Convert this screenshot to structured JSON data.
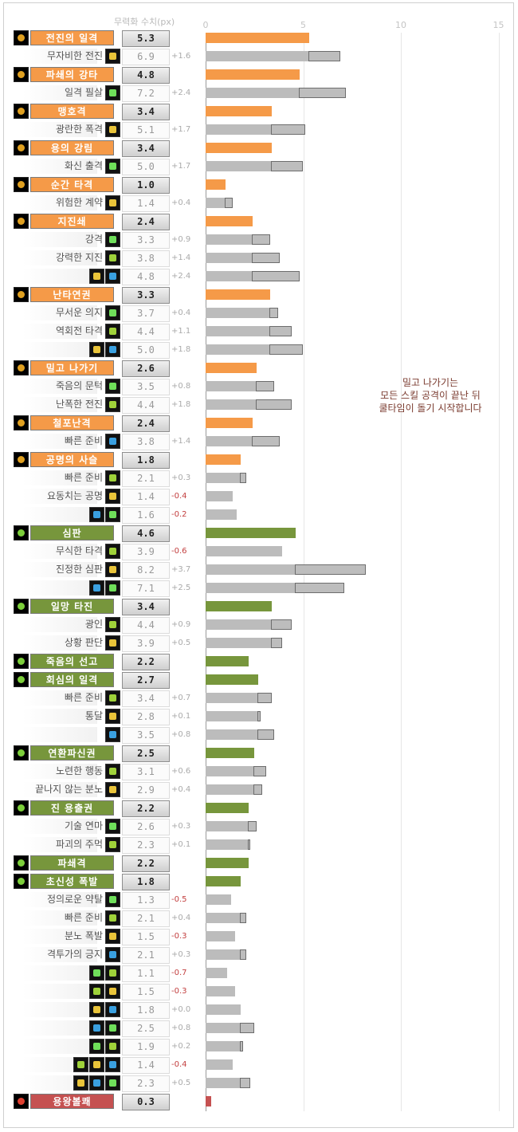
{
  "chart_data": {
    "type": "bar",
    "value_header": "무력화 수치(px)",
    "xlim": [
      0,
      15
    ],
    "ticks": [
      0,
      5,
      10,
      15
    ],
    "grid": true,
    "colors": {
      "orange": "#f59a48",
      "green": "#77963c",
      "red": "#c55151",
      "gray": "#bcbcbc"
    },
    "note": [
      "밀고 나가기는",
      "모든 스킬 공격이 끝난 뒤",
      "쿨타임이 돌기 시작합니다"
    ],
    "rows": [
      {
        "kind": "main",
        "label": "전진의 일격",
        "value": 5.3,
        "color": "orange"
      },
      {
        "kind": "sub",
        "label": "무자비한 전진",
        "icons": 1,
        "value": 6.9,
        "base": 5.3,
        "delta": "+1.6"
      },
      {
        "kind": "main",
        "label": "파쇄의 강타",
        "value": 4.8,
        "color": "orange"
      },
      {
        "kind": "sub",
        "label": "일격 필살",
        "icons": 1,
        "value": 7.2,
        "base": 4.8,
        "delta": "+2.4"
      },
      {
        "kind": "main",
        "label": "맹호격",
        "value": 3.4,
        "color": "orange"
      },
      {
        "kind": "sub",
        "label": "광란한 폭격",
        "icons": 1,
        "value": 5.1,
        "base": 3.4,
        "delta": "+1.7"
      },
      {
        "kind": "main",
        "label": "용의 강림",
        "value": 3.4,
        "color": "orange"
      },
      {
        "kind": "sub",
        "label": "화신 출격",
        "icons": 1,
        "value": 5.0,
        "base": 3.4,
        "delta": "+1.7"
      },
      {
        "kind": "main",
        "label": "순간 타격",
        "value": 1.0,
        "color": "orange"
      },
      {
        "kind": "sub",
        "label": "위험한 계약",
        "icons": 1,
        "value": 1.4,
        "base": 1.0,
        "delta": "+0.4"
      },
      {
        "kind": "main",
        "label": "지진쇄",
        "value": 2.4,
        "color": "orange"
      },
      {
        "kind": "sub",
        "label": "강격",
        "icons": 1,
        "value": 3.3,
        "base": 2.4,
        "delta": "+0.9"
      },
      {
        "kind": "sub",
        "label": "강력한 지진",
        "icons": 1,
        "value": 3.8,
        "base": 2.4,
        "delta": "+1.4"
      },
      {
        "kind": "sub",
        "label": "",
        "icons": 2,
        "value": 4.8,
        "base": 2.4,
        "delta": "+2.4"
      },
      {
        "kind": "main",
        "label": "난타연권",
        "value": 3.3,
        "color": "orange"
      },
      {
        "kind": "sub",
        "label": "무서운 의지",
        "icons": 1,
        "value": 3.7,
        "base": 3.3,
        "delta": "+0.4"
      },
      {
        "kind": "sub",
        "label": "역회전 타격",
        "icons": 1,
        "value": 4.4,
        "base": 3.3,
        "delta": "+1.1"
      },
      {
        "kind": "sub",
        "label": "",
        "icons": 2,
        "value": 5.0,
        "base": 3.3,
        "delta": "+1.8"
      },
      {
        "kind": "main",
        "label": "밀고 나가기",
        "value": 2.6,
        "color": "orange"
      },
      {
        "kind": "sub",
        "label": "죽음의 문턱",
        "icons": 1,
        "value": 3.5,
        "base": 2.6,
        "delta": "+0.8"
      },
      {
        "kind": "sub",
        "label": "난폭한 전진",
        "icons": 1,
        "value": 4.4,
        "base": 2.6,
        "delta": "+1.8"
      },
      {
        "kind": "main",
        "label": "철포난격",
        "value": 2.4,
        "color": "orange"
      },
      {
        "kind": "sub",
        "label": "빠른 준비",
        "icons": 1,
        "value": 3.8,
        "base": 2.4,
        "delta": "+1.4"
      },
      {
        "kind": "main",
        "label": "공명의 사슬",
        "value": 1.8,
        "color": "orange"
      },
      {
        "kind": "sub",
        "label": "빠른 준비",
        "icons": 1,
        "value": 2.1,
        "base": 1.8,
        "delta": "+0.3"
      },
      {
        "kind": "sub",
        "label": "요동치는 공명",
        "icons": 1,
        "value": 1.4,
        "base": 1.4,
        "delta": "-0.4"
      },
      {
        "kind": "sub",
        "label": "",
        "icons": 2,
        "value": 1.6,
        "base": 1.6,
        "delta": "-0.2"
      },
      {
        "kind": "main",
        "label": "심판",
        "value": 4.6,
        "color": "green"
      },
      {
        "kind": "sub",
        "label": "무식한 타격",
        "icons": 1,
        "value": 3.9,
        "base": 3.9,
        "delta": "-0.6"
      },
      {
        "kind": "sub",
        "label": "진정한 심판",
        "icons": 1,
        "value": 8.2,
        "base": 4.6,
        "delta": "+3.7"
      },
      {
        "kind": "sub",
        "label": "",
        "icons": 2,
        "value": 7.1,
        "base": 4.6,
        "delta": "+2.5"
      },
      {
        "kind": "main",
        "label": "일망 타진",
        "value": 3.4,
        "color": "green"
      },
      {
        "kind": "sub",
        "label": "광인",
        "icons": 1,
        "value": 4.4,
        "base": 3.4,
        "delta": "+0.9"
      },
      {
        "kind": "sub",
        "label": "상황 판단",
        "icons": 1,
        "value": 3.9,
        "base": 3.4,
        "delta": "+0.5"
      },
      {
        "kind": "main",
        "label": "죽음의 선고",
        "value": 2.2,
        "color": "green"
      },
      {
        "kind": "main",
        "label": "회심의 일격",
        "value": 2.7,
        "color": "green"
      },
      {
        "kind": "sub",
        "label": "빠른 준비",
        "icons": 1,
        "value": 3.4,
        "base": 2.7,
        "delta": "+0.7"
      },
      {
        "kind": "sub",
        "label": "통달",
        "icons": 1,
        "value": 2.8,
        "base": 2.7,
        "delta": "+0.1"
      },
      {
        "kind": "sub",
        "label": "",
        "icons": 1,
        "value": 3.5,
        "base": 2.7,
        "delta": "+0.8"
      },
      {
        "kind": "main",
        "label": "연환파신권",
        "value": 2.5,
        "color": "green"
      },
      {
        "kind": "sub",
        "label": "노련한 행동",
        "icons": 1,
        "value": 3.1,
        "base": 2.5,
        "delta": "+0.6"
      },
      {
        "kind": "sub",
        "label": "끝나지 않는 분노",
        "icons": 1,
        "value": 2.9,
        "base": 2.5,
        "delta": "+0.4"
      },
      {
        "kind": "main",
        "label": "진 용출권",
        "value": 2.2,
        "color": "green"
      },
      {
        "kind": "sub",
        "label": "기술 연마",
        "icons": 1,
        "value": 2.6,
        "base": 2.2,
        "delta": "+0.3"
      },
      {
        "kind": "sub",
        "label": "파괴의 주먹",
        "icons": 1,
        "value": 2.3,
        "base": 2.2,
        "delta": "+0.1"
      },
      {
        "kind": "main",
        "label": "파쇄격",
        "value": 2.2,
        "color": "green"
      },
      {
        "kind": "main",
        "label": "초신성 폭발",
        "value": 1.8,
        "color": "green"
      },
      {
        "kind": "sub",
        "label": "정의로운 약탈",
        "icons": 1,
        "value": 1.3,
        "base": 1.3,
        "delta": "-0.5"
      },
      {
        "kind": "sub",
        "label": "빠른 준비",
        "icons": 1,
        "value": 2.1,
        "base": 1.8,
        "delta": "+0.4"
      },
      {
        "kind": "sub",
        "label": "분노 폭발",
        "icons": 1,
        "value": 1.5,
        "base": 1.5,
        "delta": "-0.3"
      },
      {
        "kind": "sub",
        "label": "격투가의 긍지",
        "icons": 1,
        "value": 2.1,
        "base": 1.8,
        "delta": "+0.3"
      },
      {
        "kind": "sub",
        "label": "",
        "icons": 2,
        "value": 1.1,
        "base": 1.1,
        "delta": "-0.7"
      },
      {
        "kind": "sub",
        "label": "",
        "icons": 2,
        "value": 1.5,
        "base": 1.5,
        "delta": "-0.3"
      },
      {
        "kind": "sub",
        "label": "",
        "icons": 2,
        "value": 1.8,
        "base": 1.8,
        "delta": "+0.0"
      },
      {
        "kind": "sub",
        "label": "",
        "icons": 2,
        "value": 2.5,
        "base": 1.8,
        "delta": "+0.8"
      },
      {
        "kind": "sub",
        "label": "",
        "icons": 2,
        "value": 1.9,
        "base": 1.8,
        "delta": "+0.2"
      },
      {
        "kind": "sub",
        "label": "",
        "icons": 3,
        "value": 1.4,
        "base": 1.4,
        "delta": "-0.4"
      },
      {
        "kind": "sub",
        "label": "",
        "icons": 3,
        "value": 2.3,
        "base": 1.8,
        "delta": "+0.5"
      },
      {
        "kind": "main",
        "label": "용왕볼쾌",
        "value": 0.3,
        "color": "red"
      }
    ]
  }
}
